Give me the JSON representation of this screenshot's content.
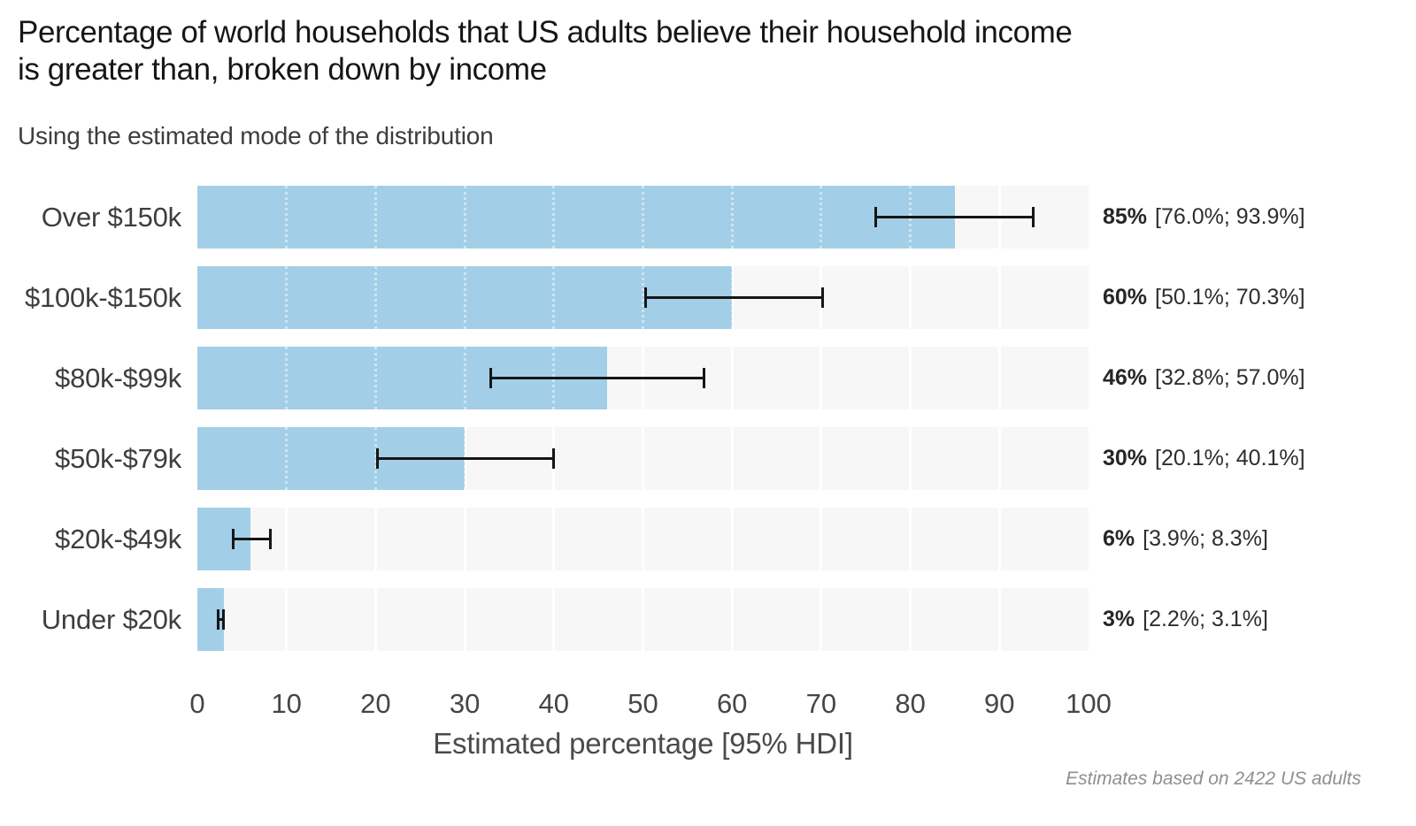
{
  "header": {
    "title_line1": "Percentage of world households that US adults believe their household income",
    "title_line2": "is greater than, broken down by income",
    "subtitle": "Using the estimated mode of the distribution"
  },
  "chart_data": {
    "type": "bar",
    "orientation": "horizontal",
    "title": "Percentage of world households that US adults believe their household income is greater than, broken down by income",
    "subtitle": "Using the estimated mode of the distribution",
    "xlabel": "Estimated percentage [95% HDI]",
    "xlim": [
      0,
      100
    ],
    "x_ticks": [
      0,
      10,
      20,
      30,
      40,
      50,
      60,
      70,
      80,
      90,
      100
    ],
    "grid": "white vertical gridlines on light gray panel, legend none",
    "categories": [
      "Over $150k",
      "$100k-$150k",
      "$80k-$99k",
      "$50k-$79k",
      "$20k-$49k",
      "Under $20k"
    ],
    "values": [
      85,
      60,
      46,
      30,
      6,
      3
    ],
    "rows": [
      {
        "category": "Over $150k",
        "value": 85,
        "ci_low": 76.0,
        "ci_high": 93.9,
        "value_label": "85%",
        "interval_label": "[76.0%; 93.9%]"
      },
      {
        "category": "$100k-$150k",
        "value": 60,
        "ci_low": 50.1,
        "ci_high": 70.3,
        "value_label": "60%",
        "interval_label": "[50.1%; 70.3%]"
      },
      {
        "category": "$80k-$99k",
        "value": 46,
        "ci_low": 32.8,
        "ci_high": 57.0,
        "value_label": "46%",
        "interval_label": "[32.8%; 57.0%]"
      },
      {
        "category": "$50k-$79k",
        "value": 30,
        "ci_low": 20.1,
        "ci_high": 40.1,
        "value_label": "30%",
        "interval_label": "[20.1%; 40.1%]"
      },
      {
        "category": "$20k-$49k",
        "value": 6,
        "ci_low": 3.9,
        "ci_high": 8.3,
        "value_label": "6%",
        "interval_label": "[3.9%; 8.3%]"
      },
      {
        "category": "Under $20k",
        "value": 3,
        "ci_low": 2.2,
        "ci_high": 3.1,
        "value_label": "3%",
        "interval_label": "[2.2%; 3.1%]"
      }
    ]
  },
  "footer": {
    "note": "Estimates based on 2422 US adults"
  },
  "colors": {
    "bar_fill": "#a2cfe7",
    "track_background": "#f7f7f7",
    "gridline": "#ffffff",
    "error_bar": "#161616",
    "title_text": "#161616",
    "body_text": "#3e3e3e",
    "footer_text": "#8f8f8f"
  }
}
